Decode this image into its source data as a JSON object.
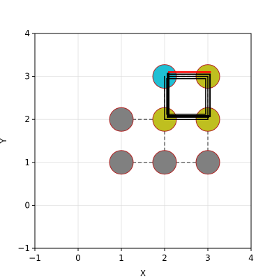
{
  "chart_data": {
    "type": "scatter",
    "title": "",
    "xlabel": "X",
    "ylabel": "Y",
    "xlim": [
      -1,
      4
    ],
    "ylim": [
      -1,
      4
    ],
    "grid": true,
    "xticks": [
      "−1",
      "0",
      "1",
      "2",
      "3",
      "4"
    ],
    "yticks": [
      "−1",
      "0",
      "1",
      "2",
      "3",
      "4"
    ],
    "nodes": [
      {
        "id": "n1",
        "x": 1,
        "y": 1,
        "color": "#808080"
      },
      {
        "id": "n2",
        "x": 2,
        "y": 1,
        "color": "#808080"
      },
      {
        "id": "n3",
        "x": 3,
        "y": 1,
        "color": "#808080"
      },
      {
        "id": "n4",
        "x": 1,
        "y": 2,
        "color": "#808080"
      },
      {
        "id": "n5",
        "x": 2,
        "y": 2,
        "color": "#bfbf1f"
      },
      {
        "id": "n6",
        "x": 3,
        "y": 2,
        "color": "#bfbf1f"
      },
      {
        "id": "n7",
        "x": 2,
        "y": 3,
        "color": "#1fbfd4"
      },
      {
        "id": "n8",
        "x": 3,
        "y": 3,
        "color": "#bfbf1f"
      }
    ],
    "node_edge_color": "#b22222",
    "dashed_edges": [
      [
        1,
        1,
        2,
        1
      ],
      [
        2,
        1,
        3,
        1
      ],
      [
        1,
        2,
        2,
        2
      ],
      [
        2,
        2,
        3,
        2
      ],
      [
        2,
        3,
        3,
        3
      ],
      [
        2,
        1,
        2,
        2
      ],
      [
        3,
        1,
        3,
        2
      ],
      [
        2,
        2,
        2,
        3
      ],
      [
        3,
        2,
        3,
        3
      ]
    ],
    "paths": [
      {
        "color": "#ff0000",
        "width": 2.5,
        "points": [
          [
            2.1,
            3.1
          ],
          [
            3.05,
            3.1
          ]
        ]
      },
      {
        "color": "#000000",
        "width": 4,
        "points": [
          [
            2.08,
            3.05
          ],
          [
            2.08,
            2.07
          ],
          [
            3.0,
            2.07
          ]
        ]
      },
      {
        "color": "#000000",
        "width": 2,
        "points": [
          [
            2.08,
            3.05
          ],
          [
            3.05,
            3.05
          ],
          [
            3.05,
            2.07
          ],
          [
            2.08,
            2.07
          ]
        ]
      },
      {
        "color": "#000000",
        "width": 1.5,
        "points": [
          [
            2.0,
            3.0
          ],
          [
            2.0,
            2.0
          ],
          [
            3.0,
            2.0
          ],
          [
            3.0,
            3.0
          ],
          [
            2.1,
            3.0
          ]
        ]
      },
      {
        "color": "#000000",
        "width": 1.5,
        "points": [
          [
            2.05,
            2.95
          ],
          [
            2.05,
            2.12
          ],
          [
            2.95,
            2.12
          ],
          [
            2.95,
            2.95
          ],
          [
            2.12,
            2.95
          ]
        ]
      }
    ]
  }
}
